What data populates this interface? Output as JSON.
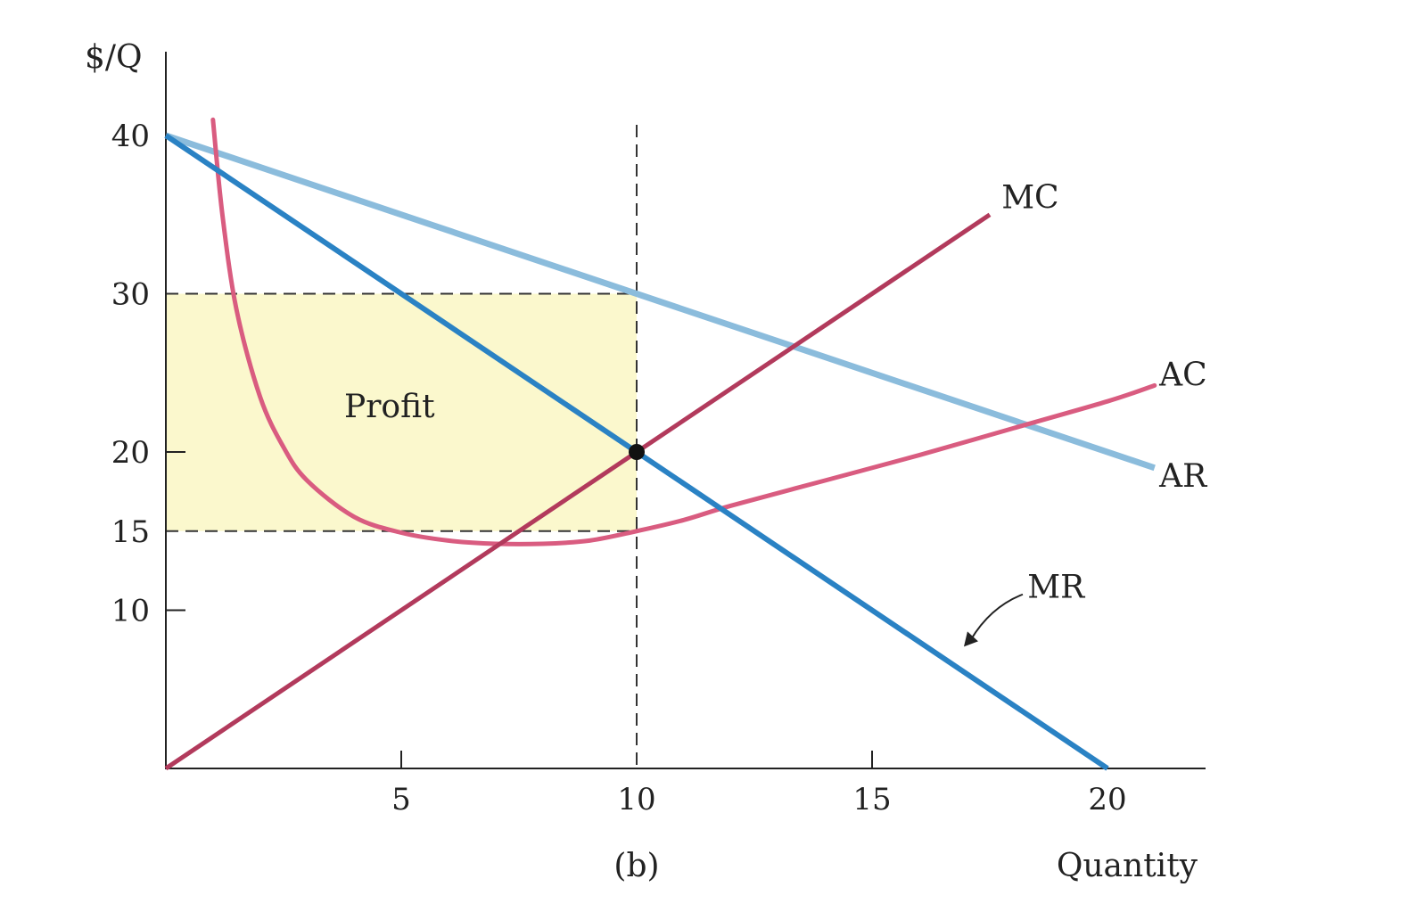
{
  "chart_data": {
    "type": "line",
    "title": "",
    "caption": "(b)",
    "xlabel": "Quantity",
    "ylabel": "$/Q",
    "xlim": [
      0,
      22
    ],
    "ylim": [
      0,
      40
    ],
    "x_ticks": [
      5,
      10,
      15,
      20
    ],
    "x_tick_labels": [
      "5",
      "10",
      "15",
      "20"
    ],
    "y_ticks": [
      10,
      15,
      20,
      30,
      40
    ],
    "y_tick_labels": [
      "10",
      "15",
      "20",
      "30",
      "40"
    ],
    "grid": false,
    "colors": {
      "AR": "#8bbcdc",
      "MR": "#2a82c4",
      "MC": "#b23a5c",
      "AC": "#d95c80",
      "profit": "#fbf8cd"
    },
    "series": [
      {
        "name": "AR",
        "x": [
          0,
          21
        ],
        "y": [
          40,
          19
        ]
      },
      {
        "name": "MR",
        "x": [
          0,
          20
        ],
        "y": [
          40,
          0
        ]
      },
      {
        "name": "MC",
        "x": [
          0,
          17.5
        ],
        "y": [
          0,
          35
        ]
      },
      {
        "name": "AC",
        "x": [
          1,
          1.2,
          1.5,
          2,
          2.5,
          3,
          4,
          5,
          6,
          7,
          8,
          9,
          10,
          11,
          12,
          14,
          16,
          18,
          20,
          21
        ],
        "y": [
          41,
          35,
          29,
          23.5,
          20.3,
          18.2,
          15.9,
          14.9,
          14.4,
          14.2,
          14.2,
          14.4,
          15,
          15.7,
          16.6,
          18.2,
          19.8,
          21.5,
          23.2,
          24.2
        ]
      }
    ],
    "annotations": {
      "profit_label": "Profit",
      "profit_rect": {
        "x": [
          0,
          10
        ],
        "y": [
          15,
          30
        ]
      },
      "guides": [
        {
          "axis": "y",
          "value": 30,
          "x_to": 10
        },
        {
          "axis": "y",
          "value": 15,
          "x_to": 10
        },
        {
          "axis": "x",
          "value": 10,
          "y_to": 40
        }
      ],
      "equilibrium_point": {
        "x": 10,
        "y": 20
      }
    }
  }
}
